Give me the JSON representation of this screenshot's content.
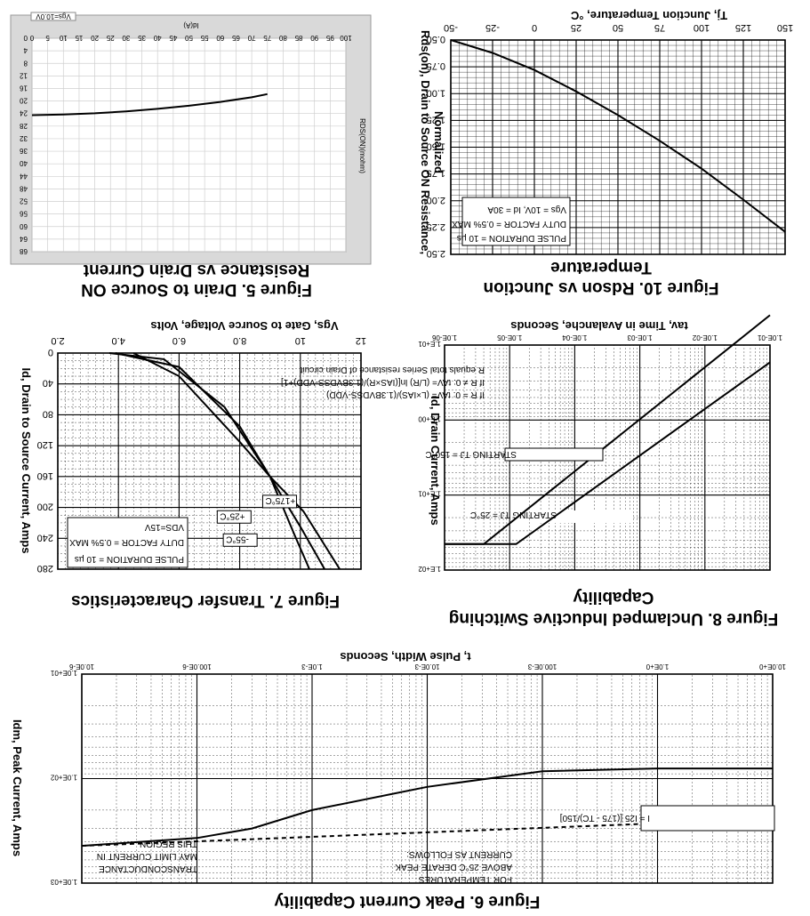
{
  "chart_data": [
    {
      "id": "fig5",
      "type": "line",
      "title": "Figure 5. Drain to Source ON Resistance vs Drain Current",
      "title_lines": [
        "Figure 5. Drain to Source ON",
        "Resistance vs Drain Current"
      ],
      "xlabel": "Id(A)",
      "ylabel": "RDS(ON)(mohm)",
      "legend": [
        "Vgs=10.0V"
      ],
      "x_ticks": [
        "0",
        "5",
        "10",
        "15",
        "20",
        "25",
        "30",
        "35",
        "40",
        "45",
        "50",
        "55",
        "60",
        "65",
        "70",
        "75",
        "80",
        "85",
        "90",
        "95",
        "100"
      ],
      "y_ticks": [
        "0",
        "4",
        "8",
        "12",
        "16",
        "20",
        "24",
        "28",
        "32",
        "36",
        "40",
        "44",
        "48",
        "52",
        "56",
        "60",
        "64",
        "68"
      ],
      "xlim": [
        0,
        100
      ],
      "ylim": [
        0,
        68
      ],
      "grid": true,
      "series": [
        {
          "name": "Vgs=10.0V",
          "x": [
            0,
            10,
            20,
            30,
            40,
            50,
            60,
            70,
            75
          ],
          "y": [
            24.5,
            24.3,
            23.9,
            23.3,
            22.5,
            21.5,
            20.3,
            18.8,
            17.8
          ]
        }
      ]
    },
    {
      "id": "fig10",
      "type": "line",
      "title": "Figure 10. Rdson vs Junction Temperature",
      "title_lines": [
        "Figure 10. Rdson vs Junction",
        "Temperature"
      ],
      "xlabel": "Tj, Junction Temperature, °C",
      "ylabel_lines": [
        "Rds(on), Drain to Source ON Resistance,",
        "Normalized"
      ],
      "x_ticks": [
        "-50",
        "-25",
        "0",
        "25",
        "50",
        "75",
        "100",
        "125",
        "150"
      ],
      "y_ticks": [
        "0.50",
        "0.75",
        "1.00",
        "1.25",
        "1.50",
        "1.75",
        "2.00",
        "2.25",
        "2.50"
      ],
      "xlim": [
        -50,
        150
      ],
      "ylim": [
        0.5,
        2.5
      ],
      "annotations": [
        "Vgs = 10V, Id = 30A",
        "DUTY FACTOR = 0.5% MAX",
        "PULSE DURATION = 10 µs"
      ],
      "series": [
        {
          "name": "",
          "x": [
            -50,
            -25,
            0,
            25,
            50,
            75,
            100,
            125,
            150
          ],
          "y": [
            0.5,
            0.62,
            0.78,
            0.98,
            1.2,
            1.44,
            1.7,
            1.99,
            2.29
          ]
        }
      ]
    },
    {
      "id": "fig7",
      "type": "line",
      "title": "Figure 7. Transfer Characteristics",
      "xlabel": "Vgs, Gate to Source Voltage, Volts",
      "ylabel": "Id, Drain to Source Current, Amps",
      "x_ticks": [
        "2.0",
        "4.0",
        "6.0",
        "8.0",
        "10",
        "12"
      ],
      "y_ticks": [
        "0",
        "40",
        "80",
        "120",
        "160",
        "200",
        "240",
        "280"
      ],
      "xlim": [
        2,
        12
      ],
      "ylim": [
        0,
        280
      ],
      "annotations": [
        "VDS=15V",
        "DUTY FACTOR = 0.5% MAX",
        "PULSE DURATION = 10 µs"
      ],
      "series": [
        {
          "name": "+175°C",
          "x": [
            4.5,
            6,
            8,
            9,
            10.1,
            11.3
          ],
          "y": [
            0,
            30,
            115,
            160,
            205,
            280
          ]
        },
        {
          "name": "+25°C",
          "x": [
            3.9,
            6,
            8,
            9,
            10,
            10.8
          ],
          "y": [
            0,
            18,
            95,
            160,
            225,
            280
          ]
        },
        {
          "name": "-55°C",
          "x": [
            3.7,
            5.5,
            7.5,
            9,
            9.8,
            10.3
          ],
          "y": [
            0,
            8,
            70,
            160,
            235,
            280
          ]
        }
      ]
    },
    {
      "id": "fig8",
      "type": "line",
      "title": "Figure 8. Unclamped Inductive Switching Capability",
      "title_lines": [
        "Figure 8. Unclamped Inductive Switching",
        "Capability"
      ],
      "xlabel": "tav, Time in Avalanche, Seconds",
      "ylabel": "Id, Drain Current, Amps",
      "x_ticks": [
        "1.0E-06",
        "1.0E-05",
        "1.0E-04",
        "1.0E-03",
        "1.0E-02",
        "1.0E-01"
      ],
      "y_ticks": [
        "1.E+01",
        "1.E+00",
        "1.E+01",
        "1.E+02"
      ],
      "x_scale": "log",
      "y_scale": "log",
      "xlim": [
        1e-06,
        0.1
      ],
      "ylim": [
        0.1,
        100.0
      ],
      "annotations": [
        "If R = 0: tAV= (L×IAS)/(1.3BVDSS-VDD)",
        "If R ≠ 0: tAV= (L/R) ln[(IAS×R)/(1.3BVDSS-VDD)+1]",
        "R equals total Series resistance of Drain circuit",
        "STARTING TJ = 150°C",
        "STARTING TJ = 25°C"
      ],
      "series": [
        {
          "name": "STARTING TJ = 25°C",
          "x": [
            1e-06,
            1.26e-05,
            0.1
          ],
          "y": [
            45,
            45,
            0.17
          ]
        },
        {
          "name": "STARTING TJ = 150°C",
          "x": [
            1e-06,
            4e-06,
            0.1
          ],
          "y": [
            45,
            45,
            0.04
          ]
        }
      ]
    },
    {
      "id": "fig6",
      "type": "line",
      "title": "Figure 6. Peak Current Capability",
      "xlabel": "t, Pulse Width, Seconds",
      "ylabel": "Idm, Peak Current, Amps",
      "x_ticks": [
        "10.0E-6",
        "100.0E-6",
        "1.0E-3",
        "10.0E-3",
        "100.0E-3",
        "1.0E+0",
        "10.0E+0"
      ],
      "y_ticks": [
        "1.0E+01",
        "1.0E+02",
        "1.0E+03"
      ],
      "x_scale": "log",
      "y_scale": "log",
      "xlim": [
        1e-05,
        10
      ],
      "ylim": [
        10,
        1000
      ],
      "annotations": [
        "TRANSCONDUCTANCE",
        "MAY LIMIT CURRENT IN",
        "THIS REGION",
        "FOR TEMPERATURES",
        "ABOVE 25°C DERATE PEAK",
        "CURRENT AS FOLLOWS:",
        "I = I25 [(175 - TC)/150]"
      ],
      "series": [
        {
          "name": "",
          "x": [
            1e-05,
            1e-05,
            0.0001,
            0.0003,
            0.001,
            0.01,
            0.1,
            1,
            10
          ],
          "y": [
            440,
            440,
            370,
            300,
            200,
            120,
            85,
            80,
            80
          ]
        }
      ]
    }
  ]
}
